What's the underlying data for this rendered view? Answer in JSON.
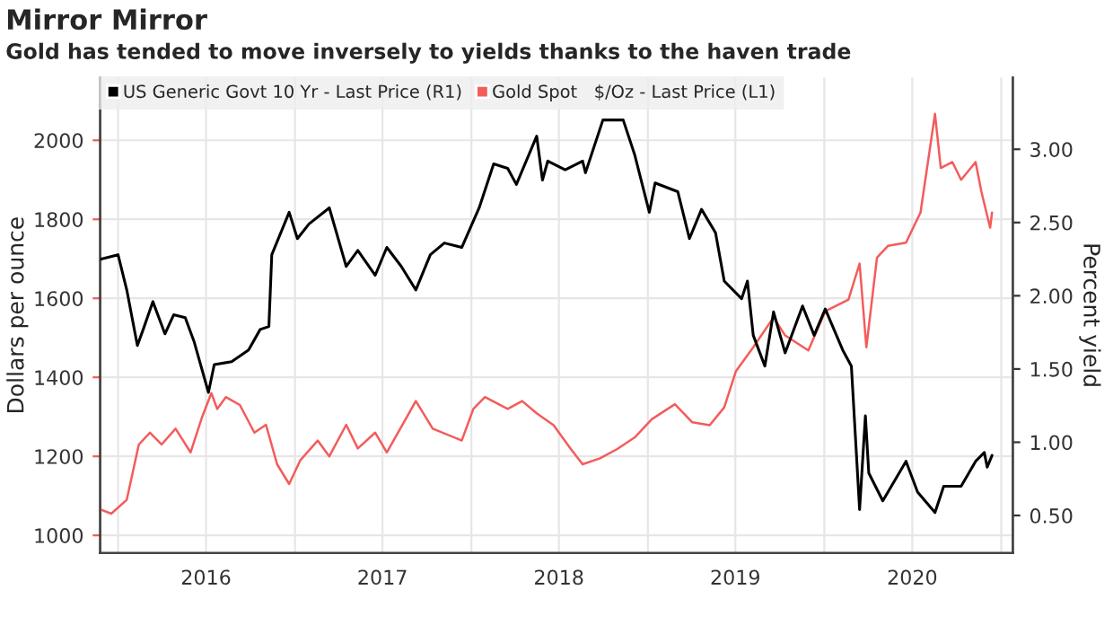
{
  "chart_data": {
    "type": "line",
    "title": "Mirror Mirror",
    "subtitle": "Gold has tended to move inversely to yields thanks to the haven trade",
    "ylabel": "Dollars per ounce",
    "y2label": "Percent yield",
    "xlim": [
      "2015-11-25",
      "2021-01-25"
    ],
    "xticks": [
      {
        "value": "2016-01-01",
        "label": null
      },
      {
        "value": "2016-07-01",
        "label": "2016"
      },
      {
        "value": "2017-01-01",
        "label": null
      },
      {
        "value": "2017-07-01",
        "label": "2017"
      },
      {
        "value": "2018-01-01",
        "label": null
      },
      {
        "value": "2018-07-01",
        "label": "2018"
      },
      {
        "value": "2019-01-01",
        "label": null
      },
      {
        "value": "2019-07-01",
        "label": "2019"
      },
      {
        "value": "2020-01-01",
        "label": null
      },
      {
        "value": "2020-07-01",
        "label": "2020"
      },
      {
        "value": "2021-01-01",
        "label": null
      }
    ],
    "ylim": [
      955,
      2159
    ],
    "yticks": [
      1000,
      1200,
      1400,
      1600,
      1800,
      2000
    ],
    "y2lim": [
      0.243,
      3.49
    ],
    "y2ticks": [
      {
        "value": 0.5,
        "label": "0.50"
      },
      {
        "value": 1.0,
        "label": "1.00"
      },
      {
        "value": 1.5,
        "label": "1.50"
      },
      {
        "value": 2.0,
        "label": "2.00"
      },
      {
        "value": 2.5,
        "label": "2.50"
      },
      {
        "value": 3.0,
        "label": "3.00"
      }
    ],
    "grid": true,
    "legend": "top left",
    "series": [
      {
        "name": "US Generic Govt 10 Yr - Last Price (R1)",
        "color": "#000000",
        "axis": "y2",
        "x": [
          "2015-11-27",
          "2016-01-01",
          "2016-01-19",
          "2016-02-10",
          "2016-02-22",
          "2016-03-13",
          "2016-04-07",
          "2016-04-25",
          "2016-05-19",
          "2016-06-06",
          "2016-07-06",
          "2016-07-18",
          "2016-08-23",
          "2016-09-27",
          "2016-10-21",
          "2016-11-08",
          "2016-11-14",
          "2016-12-20",
          "2017-01-06",
          "2017-01-30",
          "2017-03-13",
          "2017-04-17",
          "2017-05-11",
          "2017-06-16",
          "2017-07-10",
          "2017-08-09",
          "2017-09-08",
          "2017-10-08",
          "2017-11-06",
          "2017-12-12",
          "2018-01-17",
          "2018-02-16",
          "2018-03-17",
          "2018-04-04",
          "2018-05-16",
          "2018-05-28",
          "2018-06-08",
          "2018-07-14",
          "2018-08-19",
          "2018-08-25",
          "2018-09-30",
          "2018-11-11",
          "2018-12-05",
          "2019-01-04",
          "2019-01-16",
          "2019-03-04",
          "2019-03-28",
          "2019-04-22",
          "2019-05-21",
          "2019-06-08",
          "2019-07-14",
          "2019-07-26",
          "2019-08-07",
          "2019-08-31",
          "2019-09-18",
          "2019-10-12",
          "2019-11-17",
          "2019-12-11",
          "2020-01-03",
          "2020-02-08",
          "2020-02-26",
          "2020-03-14",
          "2020-03-26",
          "2020-04-02",
          "2020-05-01",
          "2020-06-18",
          "2020-07-12",
          "2020-08-17",
          "2020-09-04",
          "2020-10-10",
          "2020-11-09",
          "2020-11-27",
          "2020-12-03",
          "2020-12-13"
        ],
        "values": [
          2.25,
          2.28,
          2.04,
          1.66,
          1.77,
          1.96,
          1.74,
          1.87,
          1.85,
          1.69,
          1.34,
          1.53,
          1.55,
          1.63,
          1.77,
          1.79,
          2.28,
          2.57,
          2.39,
          2.49,
          2.6,
          2.2,
          2.31,
          2.14,
          2.33,
          2.2,
          2.04,
          2.28,
          2.36,
          2.33,
          2.6,
          2.9,
          2.87,
          2.76,
          3.09,
          2.79,
          2.92,
          2.86,
          2.92,
          2.84,
          3.2,
          3.2,
          2.96,
          2.57,
          2.77,
          2.71,
          2.39,
          2.59,
          2.43,
          2.1,
          1.98,
          2.1,
          1.73,
          1.52,
          1.89,
          1.61,
          1.93,
          1.73,
          1.91,
          1.63,
          1.52,
          0.54,
          1.18,
          0.79,
          0.6,
          0.87,
          0.66,
          0.52,
          0.7,
          0.7,
          0.87,
          0.93,
          0.83,
          0.91
        ]
      },
      {
        "name": "Gold Spot   $/Oz - Last Price (L1)",
        "color": "#f45b5b",
        "axis": "y",
        "x": [
          "2015-11-27",
          "2015-12-18",
          "2016-01-19",
          "2016-02-13",
          "2016-03-07",
          "2016-03-31",
          "2016-04-29",
          "2016-05-30",
          "2016-06-23",
          "2016-07-12",
          "2016-07-24",
          "2016-08-11",
          "2016-09-09",
          "2016-10-09",
          "2016-11-02",
          "2016-11-25",
          "2016-12-20",
          "2017-01-12",
          "2017-02-17",
          "2017-03-13",
          "2017-04-17",
          "2017-05-11",
          "2017-06-16",
          "2017-07-10",
          "2017-09-08",
          "2017-10-13",
          "2017-12-12",
          "2018-01-05",
          "2018-01-29",
          "2018-03-17",
          "2018-04-16",
          "2018-05-16",
          "2018-06-20",
          "2018-07-26",
          "2018-08-19",
          "2018-09-24",
          "2018-10-29",
          "2018-12-05",
          "2019-01-09",
          "2019-02-26",
          "2019-04-03",
          "2019-05-09",
          "2019-06-08",
          "2019-07-02",
          "2019-08-07",
          "2019-09-18",
          "2019-10-12",
          "2019-11-29",
          "2020-01-03",
          "2020-02-20",
          "2020-03-14",
          "2020-03-28",
          "2020-04-19",
          "2020-05-12",
          "2020-06-18",
          "2020-07-18",
          "2020-08-17",
          "2020-08-29",
          "2020-09-22",
          "2020-10-10",
          "2020-11-09",
          "2020-11-21",
          "2020-12-09",
          "2020-12-13"
        ],
        "values": [
          1065,
          1055,
          1090,
          1230,
          1260,
          1230,
          1270,
          1210,
          1300,
          1360,
          1320,
          1350,
          1330,
          1260,
          1280,
          1180,
          1130,
          1190,
          1240,
          1200,
          1280,
          1220,
          1260,
          1210,
          1340,
          1270,
          1240,
          1320,
          1350,
          1320,
          1340,
          1309,
          1279,
          1218,
          1180,
          1195,
          1218,
          1248,
          1294,
          1332,
          1286,
          1279,
          1324,
          1415,
          1476,
          1552,
          1506,
          1468,
          1567,
          1597,
          1688,
          1476,
          1703,
          1733,
          1741,
          1817,
          2067,
          1930,
          1945,
          1900,
          1945,
          1870,
          1779,
          1817
        ]
      }
    ]
  }
}
